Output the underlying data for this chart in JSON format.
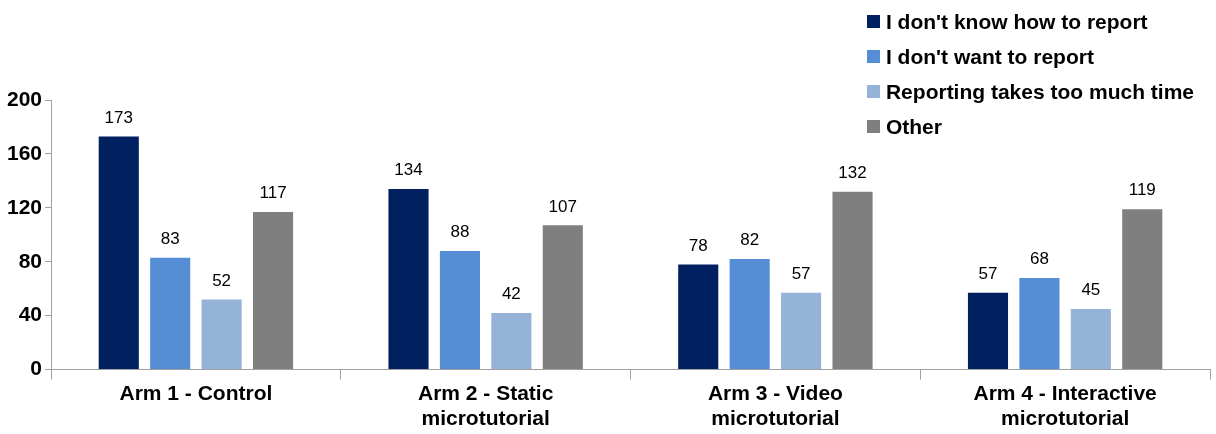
{
  "chart_data": {
    "type": "bar",
    "categories": [
      "Arm 1 - Control",
      "Arm 2 - Static microtutorial",
      "Arm 3 - Video microtutorial",
      "Arm 4 - Interactive microtutorial"
    ],
    "series": [
      {
        "name": "I don't know how to report",
        "color": "#002060",
        "values": [
          173,
          134,
          78,
          57
        ]
      },
      {
        "name": "I don't want to report",
        "color": "#558ed5",
        "values": [
          83,
          88,
          82,
          68
        ]
      },
      {
        "name": "Reporting takes too much time",
        "color": "#95b3d7",
        "values": [
          52,
          42,
          57,
          45
        ]
      },
      {
        "name": "Other",
        "color": "#7f7f7f",
        "values": [
          117,
          107,
          132,
          119
        ]
      }
    ],
    "ylim": [
      0,
      200
    ],
    "yticks": [
      0,
      40,
      80,
      120,
      160,
      200
    ],
    "grid": false,
    "legend": "top right",
    "data_labels": true
  }
}
